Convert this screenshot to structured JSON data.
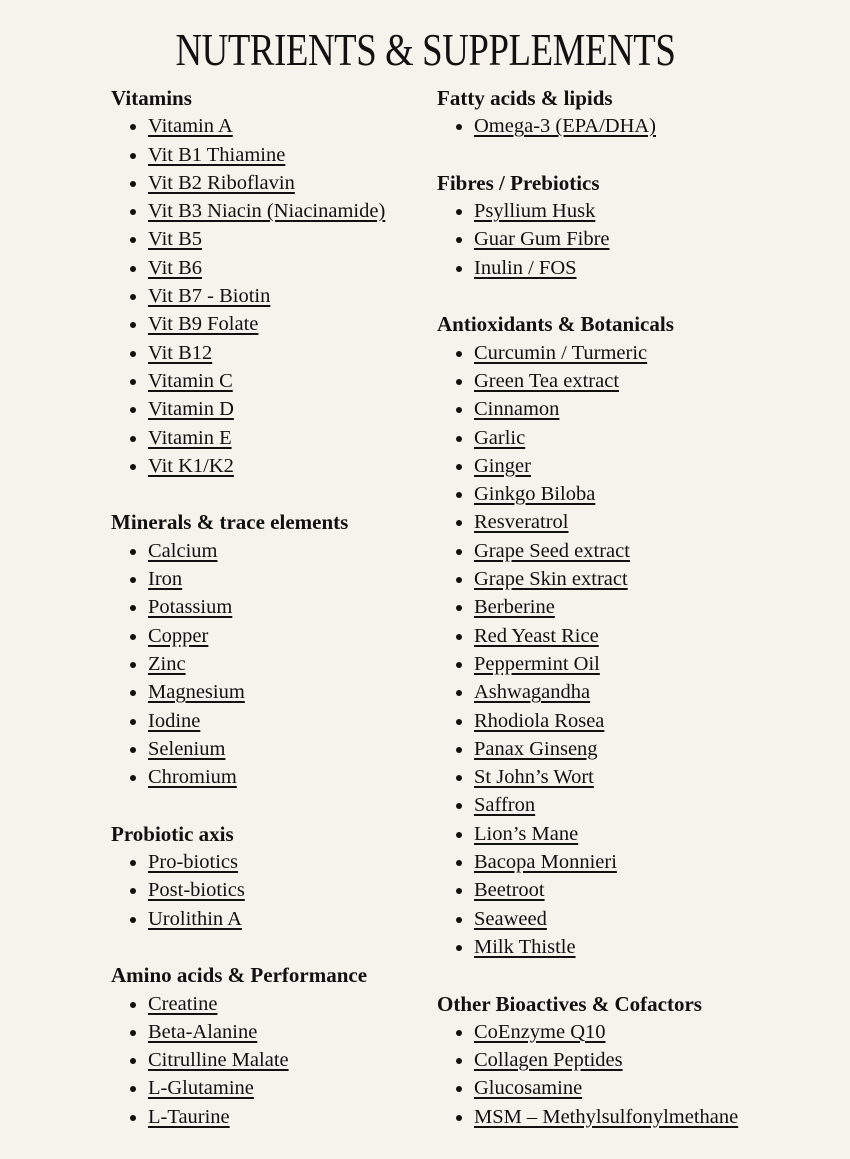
{
  "title": "NUTRIENTS & SUPPLEMENTS",
  "columns": [
    {
      "sections": [
        {
          "heading": "Vitamins",
          "items": [
            "Vitamin A",
            "Vit B1 Thiamine",
            "Vit B2 Riboflavin",
            "Vit B3 Niacin (Niacinamide)",
            "Vit B5",
            "Vit B6",
            "Vit B7 - Biotin",
            "Vit B9 Folate",
            "Vit B12",
            "Vitamin C",
            "Vitamin D",
            "Vitamin E",
            "Vit K1/K2"
          ]
        },
        {
          "heading": "Minerals & trace elements",
          "items": [
            "Calcium",
            "Iron",
            "Potassium",
            "Copper",
            "Zinc",
            "Magnesium",
            "Iodine",
            "Selenium",
            "Chromium"
          ]
        },
        {
          "heading": "Probiotic axis",
          "items": [
            "Pro-biotics",
            "Post-biotics",
            "Urolithin A"
          ]
        },
        {
          "heading": "Amino acids & Performance",
          "items": [
            "Creatine",
            "Beta-Alanine",
            "Citrulline Malate",
            "L-Glutamine",
            "L-Taurine"
          ]
        }
      ]
    },
    {
      "sections": [
        {
          "heading": "Fatty acids & lipids",
          "items": [
            "Omega-3 (EPA/DHA)"
          ]
        },
        {
          "heading": "Fibres / Prebiotics",
          "items": [
            "Psyllium Husk",
            "Guar Gum Fibre",
            "Inulin / FOS"
          ]
        },
        {
          "heading": "Antioxidants & Botanicals",
          "items": [
            "Curcumin / Turmeric",
            "Green Tea extract",
            "Cinnamon",
            "Garlic",
            "Ginger",
            "Ginkgo Biloba",
            "Resveratrol",
            "Grape Seed extract",
            "Grape Skin extract",
            "Berberine",
            "Red Yeast Rice",
            "Peppermint Oil",
            "Ashwagandha",
            "Rhodiola Rosea",
            "Panax Ginseng",
            "St John’s Wort",
            "Saffron",
            "Lion’s Mane",
            "Bacopa Monnieri",
            "Beetroot",
            "Seaweed",
            "Milk Thistle"
          ]
        },
        {
          "heading": "Other Bioactives & Cofactors",
          "items": [
            "CoEnzyme Q10",
            "Collagen Peptides",
            "Glucosamine",
            "MSM – Methylsulfonylmethane"
          ]
        }
      ]
    }
  ]
}
